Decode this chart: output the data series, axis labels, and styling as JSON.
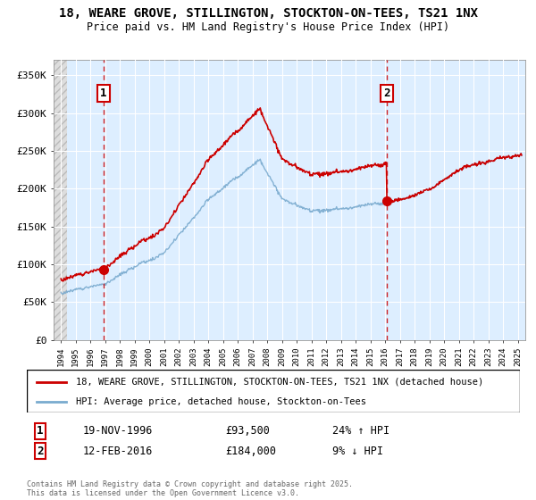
{
  "title1": "18, WEARE GROVE, STILLINGTON, STOCKTON-ON-TEES, TS21 1NX",
  "title2": "Price paid vs. HM Land Registry's House Price Index (HPI)",
  "ylim": [
    0,
    370000
  ],
  "yticks": [
    0,
    50000,
    100000,
    150000,
    200000,
    250000,
    300000,
    350000
  ],
  "ytick_labels": [
    "£0",
    "£50K",
    "£100K",
    "£150K",
    "£200K",
    "£250K",
    "£300K",
    "£350K"
  ],
  "point1_year": 1996.88,
  "point1_price": 93500,
  "point2_year": 2016.12,
  "point2_price": 184000,
  "point1_label": "1",
  "point2_label": "2",
  "point1_date": "19-NOV-1996",
  "point2_date": "12-FEB-2016",
  "point1_hpi_text": "24% ↑ HPI",
  "point2_hpi_text": "9% ↓ HPI",
  "legend_line1": "18, WEARE GROVE, STILLINGTON, STOCKTON-ON-TEES, TS21 1NX (detached house)",
  "legend_line2": "HPI: Average price, detached house, Stockton-on-Tees",
  "footer": "Contains HM Land Registry data © Crown copyright and database right 2025.\nThis data is licensed under the Open Government Licence v3.0.",
  "red_color": "#cc0000",
  "blue_color": "#7aabcf",
  "bg_plot_color": "#ddeeff",
  "hatch_color": "#c8c8c8",
  "grid_color": "#aaaacc"
}
